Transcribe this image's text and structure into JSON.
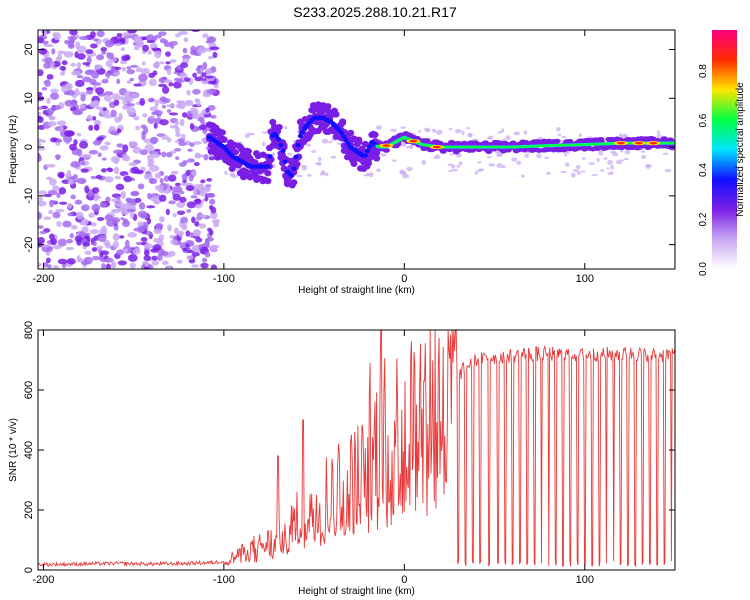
{
  "title": "S233.2025.288.10.21.R17",
  "chart_data": [
    {
      "type": "heatmap",
      "title": "S233.2025.288.10.21.R17",
      "xlabel": "Height of straight line (km)",
      "ylabel": "Frequency (Hz)",
      "xlim": [
        -203,
        150
      ],
      "ylim": [
        -25,
        24
      ],
      "x_ticks": [
        -200,
        -100,
        0,
        100
      ],
      "y_ticks": [
        -20,
        -10,
        0,
        10,
        20
      ],
      "colorbar": {
        "label": "Normalized spectral amplitude",
        "range": [
          0,
          1
        ],
        "ticks": [
          "0.0",
          "0.2",
          "0.4",
          "0.6",
          "0.8"
        ],
        "colors": [
          "#ffffff",
          "#c9a8f4",
          "#7a1ee6",
          "#1010ff",
          "#00e5ff",
          "#00ff40",
          "#ffe600",
          "#ff2a00",
          "#ff0080"
        ]
      },
      "ridge": {
        "x": [
          -108,
          -100,
          -95,
          -90,
          -85,
          -80,
          -75,
          -73,
          -70,
          -67,
          -65,
          -62,
          -58,
          -55,
          -50,
          -45,
          -40,
          -35,
          -30,
          -26,
          -22,
          -18,
          -14,
          -10,
          -5,
          0,
          10,
          20,
          40,
          60,
          80,
          100,
          120,
          140,
          150
        ],
        "y": [
          2,
          0,
          -2,
          -3,
          -4,
          -4,
          -4,
          3,
          2,
          -1,
          -5,
          -6,
          2,
          4,
          6,
          6,
          5,
          3,
          0,
          -1,
          -2,
          1,
          0,
          0,
          1,
          2,
          0.5,
          0,
          0,
          0,
          0.3,
          0.5,
          0.8,
          0.8,
          0.8
        ],
        "note": "dominant spectral line; noise scattered for x < -105"
      }
    },
    {
      "type": "line",
      "xlabel": "Height of straight line (km)",
      "ylabel": "SNR (10 * v/v)",
      "xlim": [
        -203,
        150
      ],
      "ylim": [
        0,
        800
      ],
      "x_ticks": [
        -200,
        -100,
        0,
        100
      ],
      "y_ticks": [
        0,
        200,
        400,
        600,
        800
      ],
      "color": "#e83a3a",
      "series": [
        {
          "name": "SNR",
          "x": [
            -203,
            -180,
            -160,
            -140,
            -120,
            -105,
            -100,
            -95,
            -90,
            -85,
            -80,
            -75,
            -70,
            -65,
            -60,
            -55,
            -50,
            -45,
            -40,
            -35,
            -30,
            -25,
            -20,
            -15,
            -10,
            -5,
            0,
            5,
            10,
            15,
            20,
            25,
            30,
            35,
            40,
            50,
            60,
            70,
            80,
            90,
            100,
            110,
            120,
            130,
            140,
            150
          ],
          "values": [
            18,
            20,
            22,
            20,
            22,
            25,
            30,
            40,
            55,
            70,
            80,
            90,
            100,
            130,
            160,
            200,
            220,
            250,
            260,
            280,
            290,
            330,
            380,
            420,
            450,
            470,
            500,
            520,
            540,
            560,
            580,
            620,
            650,
            680,
            700,
            710,
            715,
            720,
            720,
            720,
            715,
            720,
            720,
            720,
            715,
            720
          ],
          "spikes": [
            {
              "x": -19,
              "y": 690
            },
            {
              "x": -13,
              "y": 800
            },
            {
              "x": 17,
              "y": 800
            },
            {
              "x": -56,
              "y": 500
            },
            {
              "x": -70,
              "y": 380
            }
          ],
          "dropouts_x": [
            30,
            34,
            38,
            42,
            47,
            52,
            56,
            60,
            64,
            68,
            72,
            76,
            80,
            84,
            88,
            92,
            96,
            100,
            104,
            108,
            112,
            116,
            120,
            124,
            128,
            132,
            136,
            140,
            144,
            148
          ]
        }
      ]
    }
  ]
}
